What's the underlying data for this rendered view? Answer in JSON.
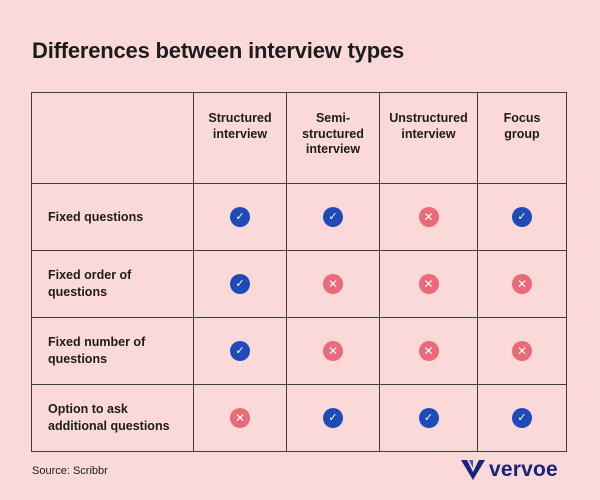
{
  "title": "Differences between interview types",
  "columns": [
    {
      "key": "structured",
      "label": "Structured interview"
    },
    {
      "key": "semi",
      "label": "Semi-structured interview"
    },
    {
      "key": "unstructured",
      "label": "Unstructured interview"
    },
    {
      "key": "focus",
      "label": "Focus group"
    }
  ],
  "rows": [
    {
      "label": "Fixed questions",
      "values": [
        true,
        true,
        false,
        true
      ]
    },
    {
      "label": "Fixed order of questions",
      "values": [
        true,
        false,
        false,
        false
      ]
    },
    {
      "label": "Fixed number of questions",
      "values": [
        true,
        false,
        false,
        false
      ]
    },
    {
      "label": "Option to ask additional questions",
      "values": [
        false,
        true,
        true,
        true
      ]
    }
  ],
  "source": "Source: Scribbr",
  "brand": {
    "name": "vervoe"
  },
  "icons": {
    "yes": "check-circle-icon",
    "no": "cross-circle-icon"
  },
  "colors": {
    "background": "#fbd9d9",
    "yes": "#1f4bb8",
    "no": "#ea6a78",
    "brand": "#15257a"
  }
}
